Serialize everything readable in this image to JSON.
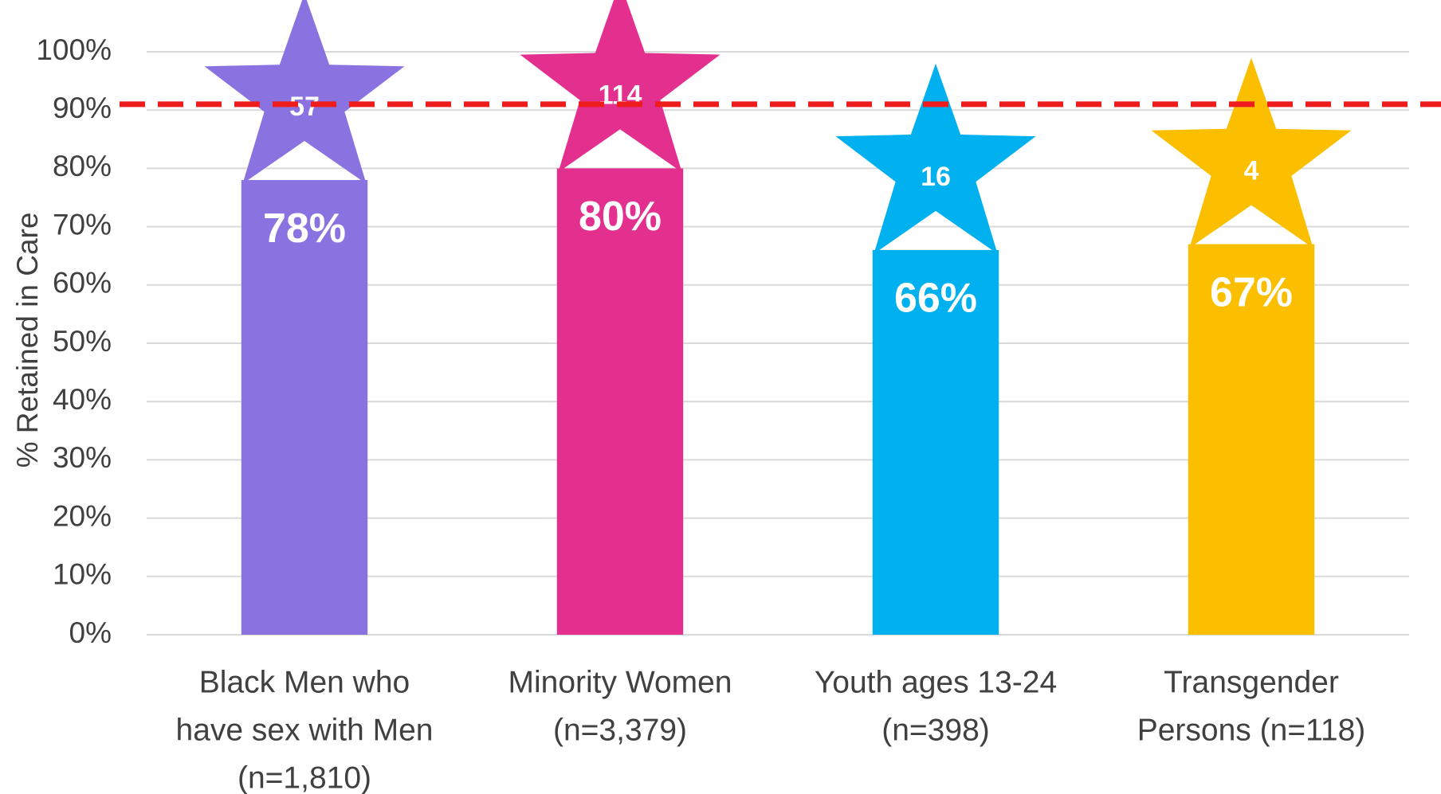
{
  "chart_data": {
    "type": "bar",
    "y_axis_label": "% Retained in Care",
    "categories": [
      [
        "Black Men who",
        "have sex with Men",
        "(n=1,810)"
      ],
      [
        "Minority Women",
        "(n=3,379)"
      ],
      [
        "Youth ages 13-24",
        "(n=398)"
      ],
      [
        "Transgender",
        "Persons (n=118)"
      ]
    ],
    "values": [
      78,
      80,
      66,
      67
    ],
    "value_labels": [
      "78%",
      "80%",
      "66%",
      "67%"
    ],
    "colors": [
      "#8a73e0",
      "#e3308f",
      "#00b0ef",
      "#fbbf00"
    ],
    "star_labels": [
      57,
      114,
      16,
      4
    ],
    "target_line": {
      "value": 91,
      "color": "#ee1c1c"
    },
    "ylim": [
      0,
      100
    ],
    "yticks": [
      {
        "value": 0,
        "label": "0%"
      },
      {
        "value": 10,
        "label": "10%"
      },
      {
        "value": 20,
        "label": "20%"
      },
      {
        "value": 30,
        "label": "30%"
      },
      {
        "value": 40,
        "label": "40%"
      },
      {
        "value": 50,
        "label": "50%"
      },
      {
        "value": 60,
        "label": "60%"
      },
      {
        "value": 70,
        "label": "70%"
      },
      {
        "value": 80,
        "label": "80%"
      },
      {
        "value": 90,
        "label": "90%"
      },
      {
        "value": 100,
        "label": "100%"
      }
    ],
    "grid": true
  }
}
